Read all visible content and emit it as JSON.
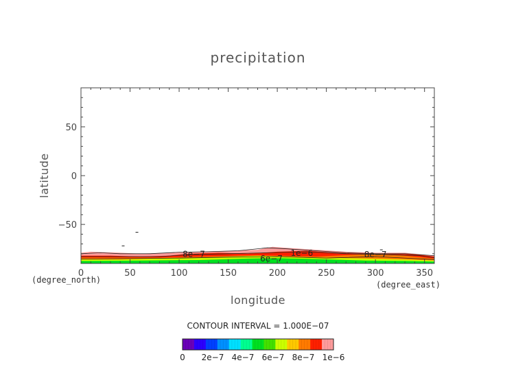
{
  "chart_data": {
    "type": "heatmap",
    "title": "precipitation",
    "xlabel": "longitude",
    "ylabel": "latitude",
    "x_unit": "(degree_east)",
    "y_unit": "(degree_north)",
    "xlim": [
      0,
      360
    ],
    "ylim": [
      -90,
      90
    ],
    "x_ticks": [
      0,
      50,
      100,
      150,
      200,
      250,
      300,
      350
    ],
    "y_ticks": [
      -50,
      0,
      50
    ],
    "x_tick_labels": [
      "0",
      "50",
      "100",
      "150",
      "200",
      "250",
      "300",
      "350"
    ],
    "y_tick_labels": [
      "−50",
      "0",
      "50"
    ],
    "contour_interval_text": "CONTOUR INTERVAL = 1.000E−07",
    "contour_labels": [
      {
        "text": "8e−7",
        "lon": 115,
        "lat": -80.5
      },
      {
        "text": "1e−6",
        "lon": 225,
        "lat": -79.5
      },
      {
        "text": "8e−7",
        "lon": 300,
        "lat": -81
      },
      {
        "text": "6e−7",
        "lon": 194,
        "lat": -85
      }
    ],
    "colorbar": {
      "colors": [
        "#6a00b8",
        "#2b00ff",
        "#0040ff",
        "#0090ff",
        "#00e0ff",
        "#00ff90",
        "#00e020",
        "#44e000",
        "#ccff00",
        "#ffc800",
        "#ff7a00",
        "#ff2000",
        "#ff9c9c"
      ],
      "tick_labels": [
        "0",
        "2e−7",
        "4e−7",
        "6e−7",
        "8e−7",
        "1e−6"
      ],
      "tick_values": [
        0,
        2e-07,
        4e-07,
        6e-07,
        8e-07,
        1e-06
      ]
    },
    "bands": [
      {
        "level": 9e-07,
        "color": "#ff9c9c",
        "upper": [
          [
            0,
            -79
          ],
          [
            10,
            -78
          ],
          [
            40,
            -79
          ],
          [
            60,
            -80
          ],
          [
            90,
            -79
          ],
          [
            120,
            -78
          ],
          [
            150,
            -77
          ],
          [
            180,
            -76
          ],
          [
            195,
            -73
          ],
          [
            210,
            -74
          ],
          [
            240,
            -76
          ],
          [
            270,
            -78
          ],
          [
            300,
            -79
          ],
          [
            330,
            -79
          ],
          [
            350,
            -81
          ],
          [
            360,
            -82
          ]
        ],
        "lower": [
          [
            0,
            -86
          ],
          [
            360,
            -86
          ]
        ]
      },
      {
        "level": 9e-07,
        "color": "#ff2000",
        "upper": [
          [
            0,
            -82
          ],
          [
            30,
            -82
          ],
          [
            60,
            -83
          ],
          [
            90,
            -82
          ],
          [
            110,
            -80
          ],
          [
            140,
            -79
          ],
          [
            170,
            -80
          ],
          [
            200,
            -78
          ],
          [
            230,
            -77
          ],
          [
            260,
            -79
          ],
          [
            290,
            -80
          ],
          [
            320,
            -80
          ],
          [
            345,
            -81
          ],
          [
            360,
            -83
          ]
        ],
        "lower": [
          [
            0,
            -85
          ],
          [
            360,
            -85
          ]
        ]
      },
      {
        "level": 7e-07,
        "color": "#ff7a00",
        "upper": [
          [
            0,
            -84
          ],
          [
            40,
            -84
          ],
          [
            80,
            -84
          ],
          [
            120,
            -83
          ],
          [
            160,
            -82
          ],
          [
            200,
            -82
          ],
          [
            240,
            -83
          ],
          [
            280,
            -81
          ],
          [
            300,
            -80
          ],
          [
            320,
            -81
          ],
          [
            350,
            -84
          ],
          [
            360,
            -85
          ]
        ],
        "lower": [
          [
            0,
            -87
          ],
          [
            360,
            -87
          ]
        ]
      },
      {
        "level": 5e-07,
        "color": "#ccff00",
        "upper": [
          [
            0,
            -86
          ],
          [
            40,
            -86
          ],
          [
            80,
            -85
          ],
          [
            120,
            -84
          ],
          [
            150,
            -83
          ],
          [
            180,
            -82
          ],
          [
            210,
            -83
          ],
          [
            250,
            -84
          ],
          [
            290,
            -85
          ],
          [
            330,
            -86
          ],
          [
            360,
            -87
          ]
        ],
        "lower": [
          [
            0,
            -88
          ],
          [
            360,
            -88
          ]
        ]
      },
      {
        "level": 4e-07,
        "color": "#00e020",
        "upper": [
          [
            0,
            -87.5
          ],
          [
            60,
            -87
          ],
          [
            120,
            -86.5
          ],
          [
            170,
            -85
          ],
          [
            200,
            -84.5
          ],
          [
            240,
            -85.5
          ],
          [
            290,
            -87
          ],
          [
            330,
            -87.5
          ],
          [
            360,
            -88
          ]
        ],
        "lower": [
          [
            0,
            -90
          ],
          [
            360,
            -90
          ]
        ]
      }
    ],
    "contour_lines": [
      [
        [
          0,
          -80
        ],
        [
          20,
          -79
        ],
        [
          40,
          -80
        ],
        [
          70,
          -80
        ],
        [
          100,
          -78.5
        ],
        [
          130,
          -78
        ],
        [
          160,
          -77
        ],
        [
          190,
          -74
        ],
        [
          210,
          -75
        ],
        [
          240,
          -77
        ],
        [
          270,
          -79
        ],
        [
          300,
          -80
        ],
        [
          330,
          -80
        ],
        [
          360,
          -82
        ]
      ],
      [
        [
          0,
          -83
        ],
        [
          40,
          -83
        ],
        [
          80,
          -83
        ],
        [
          110,
          -81
        ],
        [
          150,
          -80
        ],
        [
          190,
          -79
        ],
        [
          230,
          -78
        ],
        [
          270,
          -80
        ],
        [
          310,
          -81
        ],
        [
          345,
          -82
        ],
        [
          360,
          -84
        ]
      ],
      [
        [
          0,
          -85.5
        ],
        [
          50,
          -85
        ],
        [
          100,
          -84.5
        ],
        [
          150,
          -83.5
        ],
        [
          200,
          -83
        ],
        [
          250,
          -84.5
        ],
        [
          300,
          -83
        ],
        [
          340,
          -85
        ],
        [
          360,
          -86
        ]
      ]
    ],
    "specks": [
      {
        "lon": 57,
        "lat": -58
      },
      {
        "lon": 43,
        "lat": -72
      },
      {
        "lon": 306,
        "lat": -76
      }
    ]
  }
}
